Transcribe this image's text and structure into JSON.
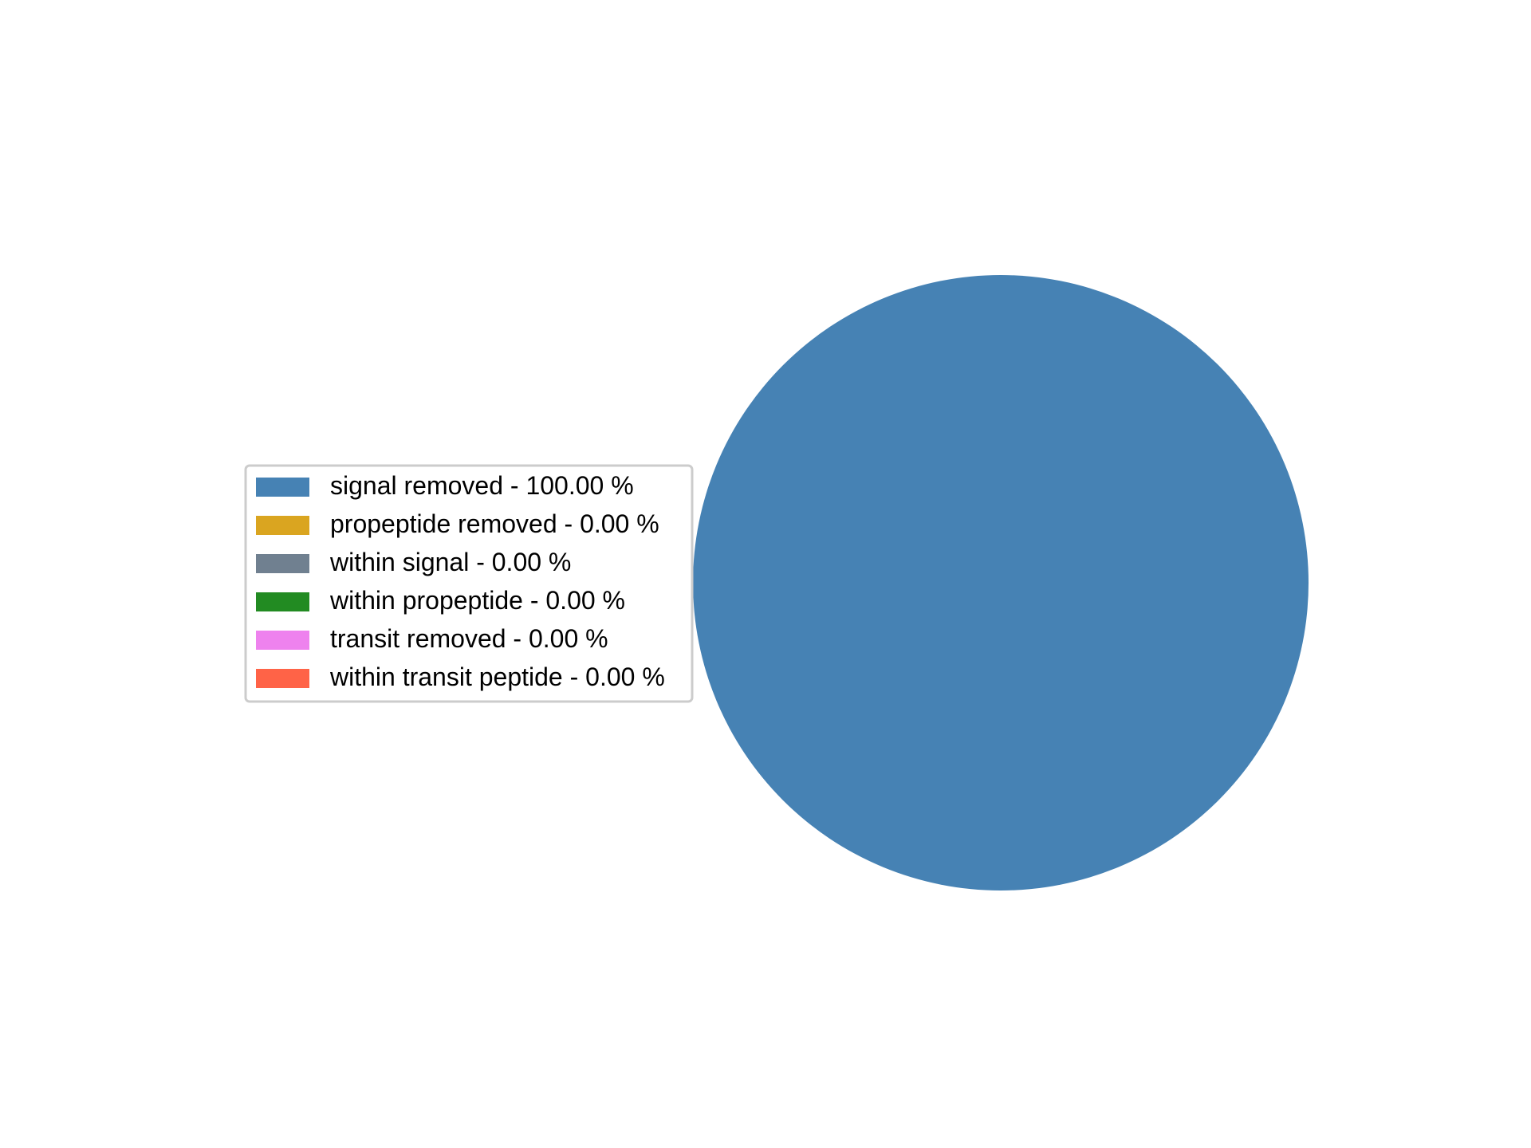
{
  "chart_data": {
    "type": "pie",
    "slices": [
      {
        "label": "signal removed - 100.00 %",
        "value": 100.0,
        "color": "#4682b4"
      },
      {
        "label": "propeptide removed - 0.00 %",
        "value": 0.0,
        "color": "#daa520"
      },
      {
        "label": "within signal - 0.00 %",
        "value": 0.0,
        "color": "#708090"
      },
      {
        "label": "within propeptide - 0.00 %",
        "value": 0.0,
        "color": "#228b22"
      },
      {
        "label": "transit removed - 0.00 %",
        "value": 0.0,
        "color": "#ee82ee"
      },
      {
        "label": "within transit peptide - 0.00 %",
        "value": 0.0,
        "color": "#ff6347"
      }
    ],
    "legend_position": "center-left"
  }
}
